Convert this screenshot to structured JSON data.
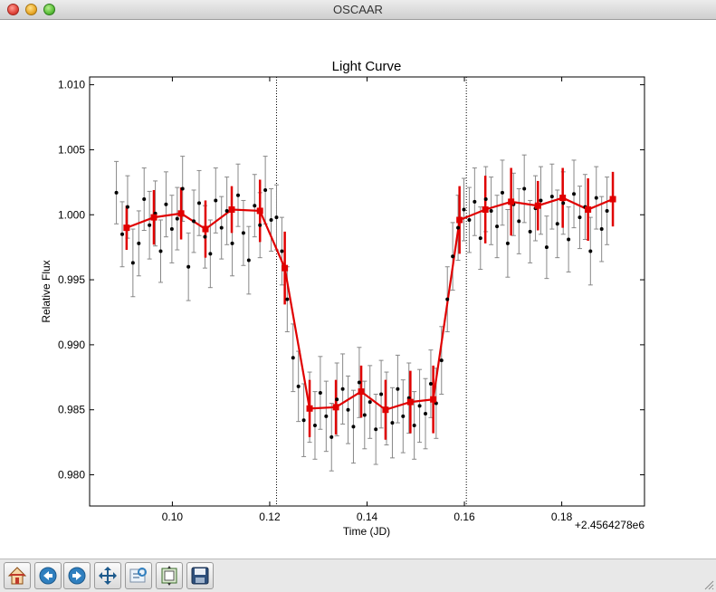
{
  "window": {
    "title": "OSCAAR"
  },
  "toolbar": {
    "buttons": [
      {
        "name": "home-button",
        "icon": "home-icon"
      },
      {
        "name": "back-button",
        "icon": "back-arrow-icon"
      },
      {
        "name": "forward-button",
        "icon": "forward-arrow-icon"
      },
      {
        "name": "pan-button",
        "icon": "move-icon"
      },
      {
        "name": "zoom-button",
        "icon": "zoom-rect-icon"
      },
      {
        "name": "subplots-button",
        "icon": "configure-subplots-icon"
      },
      {
        "name": "save-button",
        "icon": "save-icon"
      }
    ]
  },
  "chart_data": {
    "type": "scatter",
    "title": "Light Curve",
    "xlabel": "Time (JD)",
    "ylabel": "Relative Flux",
    "x_offset_label": "+2.4564278e6",
    "xlim": [
      0.083,
      0.197
    ],
    "ylim": [
      0.9776,
      1.0106
    ],
    "xticks": [
      0.1,
      0.12,
      0.14,
      0.16,
      0.18
    ],
    "xtick_labels": [
      "0.10",
      "0.12",
      "0.14",
      "0.16",
      "0.18"
    ],
    "yticks": [
      0.98,
      0.985,
      0.99,
      0.995,
      1.0,
      1.005,
      1.01
    ],
    "ytick_labels": [
      "0.980",
      "0.985",
      "0.990",
      "0.995",
      "1.000",
      "1.005",
      "1.010"
    ],
    "vlines": [
      0.1214,
      0.1604
    ],
    "colors": {
      "raw": "#000000",
      "raw_err": "#888888",
      "binned": "#e00000"
    },
    "series": [
      {
        "kind": "raw",
        "x": [
          0.0885,
          0.0897,
          0.0908,
          0.0919,
          0.0931,
          0.0942,
          0.0953,
          0.0965,
          0.0976,
          0.0987,
          0.0999,
          0.101,
          0.1021,
          0.1033,
          0.1044,
          0.1055,
          0.1067,
          0.1078,
          0.1089,
          0.1101,
          0.1112,
          0.1123,
          0.1135,
          0.1146,
          0.1157,
          0.1169,
          0.118,
          0.1191,
          0.1203,
          0.1214,
          0.1225,
          0.1236,
          0.1248,
          0.1259,
          0.127,
          0.1282,
          0.1293,
          0.1304,
          0.1316,
          0.1327,
          0.1338,
          0.135,
          0.1361,
          0.1372,
          0.1384,
          0.1395,
          0.1406,
          0.1418,
          0.1429,
          0.144,
          0.1452,
          0.1463,
          0.1474,
          0.1486,
          0.1497,
          0.1508,
          0.152,
          0.1531,
          0.1542,
          0.1553,
          0.1565,
          0.1576,
          0.1587,
          0.1599,
          0.161,
          0.1621,
          0.1633,
          0.1644,
          0.1655,
          0.1667,
          0.1678,
          0.1689,
          0.1701,
          0.1712,
          0.1723,
          0.1735,
          0.1746,
          0.1757,
          0.1769,
          0.178,
          0.1791,
          0.1803,
          0.1814,
          0.1825,
          0.1837,
          0.1848,
          0.1859,
          0.1871,
          0.1882,
          0.1893
        ],
        "y": [
          1.0017,
          0.9985,
          1.0006,
          0.9963,
          0.9978,
          1.0012,
          0.9992,
          1.0001,
          0.9972,
          1.0008,
          0.9989,
          0.9997,
          1.002,
          0.996,
          0.9995,
          1.0009,
          0.9983,
          0.997,
          1.0011,
          0.999,
          1.0003,
          0.9978,
          1.0015,
          0.9986,
          0.9965,
          1.0007,
          0.9992,
          1.0019,
          0.9996,
          0.9998,
          0.9972,
          0.9935,
          0.989,
          0.9868,
          0.9842,
          0.9852,
          0.9838,
          0.9863,
          0.9845,
          0.9829,
          0.9858,
          0.9866,
          0.985,
          0.9837,
          0.9871,
          0.9846,
          0.9856,
          0.9835,
          0.9862,
          0.9851,
          0.984,
          0.9866,
          0.9845,
          0.9859,
          0.9838,
          0.9853,
          0.9847,
          0.987,
          0.9855,
          0.9888,
          0.9935,
          0.9968,
          0.999,
          1.0004,
          0.9996,
          1.001,
          0.9982,
          1.0012,
          1.0003,
          0.9991,
          1.0017,
          0.9978,
          1.0008,
          0.9995,
          1.002,
          0.9987,
          1.0005,
          1.0011,
          0.9975,
          1.0014,
          0.9993,
          1.0009,
          0.9981,
          1.0016,
          0.9998,
          1.0006,
          0.9972,
          1.0013,
          0.9989,
          1.0003
        ],
        "err": [
          0.0024,
          0.0025,
          0.0024,
          0.0026,
          0.0025,
          0.0024,
          0.0026,
          0.0025,
          0.0024,
          0.0025,
          0.0026,
          0.0024,
          0.0025,
          0.0026,
          0.0024,
          0.0025,
          0.0024,
          0.0026,
          0.0025,
          0.0024,
          0.0026,
          0.0025,
          0.0024,
          0.0025,
          0.0026,
          0.0024,
          0.0025,
          0.0026,
          0.0024,
          0.0025,
          0.0026,
          0.0025,
          0.0026,
          0.0027,
          0.0028,
          0.0027,
          0.0026,
          0.0028,
          0.0027,
          0.0026,
          0.0028,
          0.0027,
          0.0026,
          0.0028,
          0.0027,
          0.0026,
          0.0028,
          0.0027,
          0.0026,
          0.0028,
          0.0027,
          0.0026,
          0.0028,
          0.0027,
          0.0026,
          0.0028,
          0.0027,
          0.0026,
          0.0027,
          0.0026,
          0.0025,
          0.0026,
          0.0025,
          0.0024,
          0.0025,
          0.0026,
          0.0024,
          0.0025,
          0.0026,
          0.0024,
          0.0025,
          0.0026,
          0.0024,
          0.0025,
          0.0026,
          0.0024,
          0.0025,
          0.0026,
          0.0024,
          0.0025,
          0.0026,
          0.0024,
          0.0025,
          0.0026,
          0.0024,
          0.0025,
          0.0026,
          0.0024,
          0.0025,
          0.0026
        ]
      },
      {
        "kind": "binned",
        "x": [
          0.0906,
          0.0962,
          0.1018,
          0.1068,
          0.1122,
          0.118,
          0.1231,
          0.1282,
          0.1336,
          0.1388,
          0.1438,
          0.1489,
          0.1536,
          0.159,
          0.1643,
          0.1696,
          0.1751,
          0.1802,
          0.1854,
          0.1905
        ],
        "y": [
          0.999,
          0.9998,
          1.0001,
          0.9989,
          1.0004,
          1.0003,
          0.9959,
          0.9851,
          0.9852,
          0.9864,
          0.985,
          0.9856,
          0.9858,
          0.9996,
          1.0004,
          1.001,
          1.0007,
          1.0013,
          1.0004,
          1.0012
        ],
        "err": [
          0.0017,
          0.0021,
          0.002,
          0.0022,
          0.0018,
          0.0024,
          0.0028,
          0.0022,
          0.0021,
          0.002,
          0.0023,
          0.0024,
          0.0026,
          0.0026,
          0.0026,
          0.0026,
          0.0019,
          0.0023,
          0.0024,
          0.0021
        ]
      }
    ]
  }
}
